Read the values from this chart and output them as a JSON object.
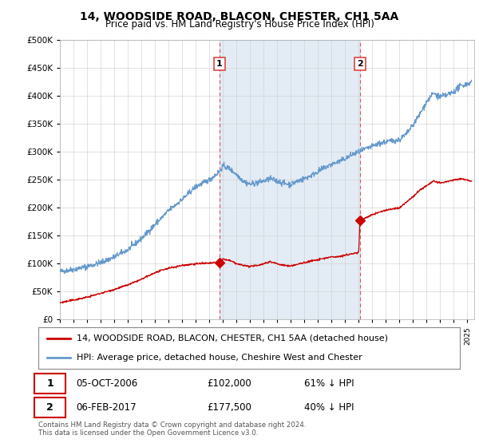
{
  "title": "14, WOODSIDE ROAD, BLACON, CHESTER, CH1 5AA",
  "subtitle": "Price paid vs. HM Land Registry's House Price Index (HPI)",
  "ytick_values": [
    0,
    50000,
    100000,
    150000,
    200000,
    250000,
    300000,
    350000,
    400000,
    450000,
    500000
  ],
  "ylim": [
    0,
    500000
  ],
  "xlim_start": 1995.0,
  "xlim_end": 2025.5,
  "sale1_x": 2006.75,
  "sale1_y": 102000,
  "sale2_x": 2017.08,
  "sale2_y": 177500,
  "sale_color": "#cc0000",
  "hpi_color": "#6699cc",
  "vline_color": "#dd4444",
  "shade_color": "#ddeeff",
  "legend_sale_label": "14, WOODSIDE ROAD, BLACON, CHESTER, CH1 5AA (detached house)",
  "legend_hpi_label": "HPI: Average price, detached house, Cheshire West and Chester",
  "table_row1": [
    "1",
    "05-OCT-2006",
    "£102,000",
    "61% ↓ HPI"
  ],
  "table_row2": [
    "2",
    "06-FEB-2017",
    "£177,500",
    "40% ↓ HPI"
  ],
  "footnote": "Contains HM Land Registry data © Crown copyright and database right 2024.\nThis data is licensed under the Open Government Licence v3.0.",
  "bg_color": "#ffffff",
  "plot_bg_color": "#ffffff",
  "grid_color": "#cccccc"
}
